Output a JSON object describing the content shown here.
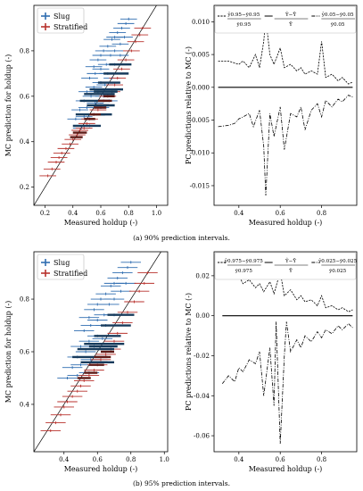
{
  "captions": {
    "a": "(a) 90% prediction intervals.",
    "b": "(b) 95% prediction intervals."
  },
  "colors": {
    "slug": "#2f6db0",
    "stratified": "#b8322d",
    "slug_bar": "#173b5c",
    "stratified_bar": "#5e1a16",
    "axis": "#000000"
  },
  "chart_data": [
    {
      "id": "a-left",
      "type": "scatter",
      "xlabel": "Measured holdup (-)",
      "ylabel": "MC prediction for holdup (-)",
      "xlim": [
        0.12,
        1.08
      ],
      "ylim": [
        0.12,
        1.0
      ],
      "xticks": [
        "0.2",
        "0.4",
        "0.6",
        "0.8",
        "1.0"
      ],
      "yticks": [
        "0.2",
        "0.4",
        "0.6",
        "0.8"
      ],
      "grid": false,
      "legend": "top-left",
      "diagonal": true,
      "series": [
        {
          "name": "Slug",
          "points": [
            [
              0.55,
              0.73
            ],
            [
              0.58,
              0.76
            ],
            [
              0.6,
              0.78
            ],
            [
              0.62,
              0.8
            ],
            [
              0.65,
              0.82
            ],
            [
              0.68,
              0.85
            ],
            [
              0.7,
              0.86
            ],
            [
              0.72,
              0.88
            ],
            [
              0.75,
              0.9
            ],
            [
              0.78,
              0.92
            ],
            [
              0.8,
              0.94
            ],
            [
              0.52,
              0.68
            ],
            [
              0.56,
              0.7
            ],
            [
              0.6,
              0.72
            ],
            [
              0.64,
              0.74
            ],
            [
              0.67,
              0.78
            ],
            [
              0.7,
              0.8
            ],
            [
              0.74,
              0.83
            ],
            [
              0.77,
              0.86
            ],
            [
              0.5,
              0.62
            ],
            [
              0.55,
              0.64
            ],
            [
              0.6,
              0.66
            ],
            [
              0.65,
              0.7
            ],
            [
              0.7,
              0.74
            ],
            [
              0.74,
              0.78
            ],
            [
              0.48,
              0.58
            ],
            [
              0.53,
              0.6
            ],
            [
              0.58,
              0.62
            ],
            [
              0.63,
              0.65
            ],
            [
              0.68,
              0.68
            ],
            [
              0.45,
              0.54
            ],
            [
              0.5,
              0.55
            ],
            [
              0.56,
              0.57
            ],
            [
              0.62,
              0.6
            ],
            [
              0.42,
              0.5
            ],
            [
              0.48,
              0.51
            ],
            [
              0.55,
              0.52
            ],
            [
              0.6,
              0.55
            ],
            [
              0.66,
              0.58
            ],
            [
              0.46,
              0.46
            ],
            [
              0.52,
              0.47
            ]
          ]
        },
        {
          "name": "Stratified",
          "points": [
            [
              0.22,
              0.25
            ],
            [
              0.25,
              0.28
            ],
            [
              0.28,
              0.31
            ],
            [
              0.3,
              0.33
            ],
            [
              0.32,
              0.35
            ],
            [
              0.35,
              0.37
            ],
            [
              0.38,
              0.39
            ],
            [
              0.4,
              0.41
            ],
            [
              0.43,
              0.43
            ],
            [
              0.45,
              0.45
            ],
            [
              0.48,
              0.46
            ],
            [
              0.5,
              0.48
            ],
            [
              0.52,
              0.5
            ],
            [
              0.55,
              0.52
            ],
            [
              0.58,
              0.54
            ],
            [
              0.6,
              0.56
            ],
            [
              0.62,
              0.58
            ],
            [
              0.65,
              0.6
            ],
            [
              0.68,
              0.62
            ],
            [
              0.7,
              0.65
            ],
            [
              0.72,
              0.68
            ],
            [
              0.75,
              0.72
            ],
            [
              0.78,
              0.76
            ],
            [
              0.82,
              0.8
            ],
            [
              0.85,
              0.84
            ],
            [
              0.88,
              0.87
            ],
            [
              0.9,
              0.9
            ]
          ]
        }
      ],
      "bars": [
        [
          0.52,
          0.63,
          0.76
        ],
        [
          0.48,
          0.61,
          0.7
        ],
        [
          0.45,
          0.58,
          0.66
        ],
        [
          0.42,
          0.52,
          0.63
        ],
        [
          0.4,
          0.47,
          0.6
        ],
        [
          0.5,
          0.56,
          0.66
        ],
        [
          0.55,
          0.62,
          0.72
        ],
        [
          0.58,
          0.66,
          0.74
        ],
        [
          0.62,
          0.7,
          0.8
        ],
        [
          0.66,
          0.74,
          0.82
        ],
        [
          0.56,
          0.56,
          0.7
        ],
        [
          0.6,
          0.52,
          0.68
        ]
      ],
      "strat_bars": [
        [
          0.58,
          0.58,
          0.68
        ],
        [
          0.62,
          0.6,
          0.7
        ],
        [
          0.55,
          0.55,
          0.64
        ],
        [
          0.52,
          0.52,
          0.6
        ],
        [
          0.48,
          0.5,
          0.56
        ],
        [
          0.4,
          0.44,
          0.5
        ],
        [
          0.38,
          0.42,
          0.47
        ]
      ]
    },
    {
      "id": "a-right",
      "type": "line",
      "xlabel": "Measured holdup (-)",
      "ylabel": "PC predictions relative to MC (-)",
      "xlim": [
        0.28,
        0.97
      ],
      "ylim": [
        -0.018,
        0.0125
      ],
      "xticks": [
        "0.4",
        "0.6",
        "0.8"
      ],
      "yticks": [
        "0.010",
        "0.005",
        "0.000",
        "-0.005",
        "-0.010",
        "-0.015"
      ],
      "grid": false,
      "legend": "top",
      "legend_entries": [
        "ŷ0.95−ȳ0.95 / ȳ0.95",
        "Ŷ−Ȳ / Ȳ",
        "ŷ0.05−ȳ0.05 / ȳ0.05"
      ],
      "series": [
        {
          "name": "upper",
          "style": "dashed",
          "x": [
            0.3,
            0.35,
            0.4,
            0.42,
            0.45,
            0.48,
            0.5,
            0.52,
            0.53,
            0.55,
            0.57,
            0.6,
            0.62,
            0.65,
            0.68,
            0.7,
            0.72,
            0.75,
            0.78,
            0.8,
            0.82,
            0.85,
            0.88,
            0.9,
            0.93,
            0.95
          ],
          "y": [
            0.004,
            0.004,
            0.0035,
            0.004,
            0.003,
            0.005,
            0.003,
            0.007,
            0.0105,
            0.005,
            0.0035,
            0.006,
            0.003,
            0.0035,
            0.0025,
            0.003,
            0.002,
            0.0025,
            0.002,
            0.007,
            0.0015,
            0.002,
            0.001,
            0.0015,
            0.0005,
            0.0008
          ]
        },
        {
          "name": "mean",
          "style": "solid",
          "x": [
            0.3,
            0.95
          ],
          "y": [
            0,
            0
          ]
        },
        {
          "name": "lower",
          "style": "dashdot",
          "x": [
            0.3,
            0.35,
            0.38,
            0.4,
            0.42,
            0.45,
            0.47,
            0.5,
            0.52,
            0.53,
            0.55,
            0.57,
            0.6,
            0.62,
            0.65,
            0.68,
            0.7,
            0.72,
            0.75,
            0.78,
            0.8,
            0.82,
            0.85,
            0.88,
            0.9,
            0.93,
            0.95
          ],
          "y": [
            -0.006,
            -0.0058,
            -0.0055,
            -0.0048,
            -0.0045,
            -0.004,
            -0.006,
            -0.0035,
            -0.009,
            -0.0165,
            -0.004,
            -0.0075,
            -0.003,
            -0.0095,
            -0.004,
            -0.0045,
            -0.003,
            -0.0065,
            -0.0035,
            -0.0025,
            -0.0045,
            -0.002,
            -0.003,
            -0.0018,
            -0.0022,
            -0.0012,
            -0.0015
          ]
        }
      ]
    },
    {
      "id": "b-left",
      "type": "scatter",
      "xlabel": "Measured holdup (-)",
      "ylabel": "MC prediction for holdup (-)",
      "xlim": [
        0.22,
        1.02
      ],
      "ylim": [
        0.22,
        0.98
      ],
      "xticks": [
        "0.4",
        "0.6",
        "0.8",
        "1.0"
      ],
      "yticks": [
        "0.4",
        "0.6",
        "0.8"
      ],
      "grid": false,
      "legend": "top-left",
      "diagonal": true,
      "series": [
        {
          "name": "Slug",
          "points": [
            [
              0.55,
              0.73
            ],
            [
              0.58,
              0.76
            ],
            [
              0.6,
              0.78
            ],
            [
              0.62,
              0.8
            ],
            [
              0.65,
              0.82
            ],
            [
              0.68,
              0.85
            ],
            [
              0.7,
              0.86
            ],
            [
              0.72,
              0.88
            ],
            [
              0.75,
              0.9
            ],
            [
              0.78,
              0.92
            ],
            [
              0.8,
              0.94
            ],
            [
              0.52,
              0.68
            ],
            [
              0.56,
              0.7
            ],
            [
              0.6,
              0.72
            ],
            [
              0.64,
              0.74
            ],
            [
              0.67,
              0.78
            ],
            [
              0.7,
              0.8
            ],
            [
              0.74,
              0.83
            ],
            [
              0.77,
              0.86
            ],
            [
              0.5,
              0.62
            ],
            [
              0.55,
              0.64
            ],
            [
              0.6,
              0.66
            ],
            [
              0.65,
              0.7
            ],
            [
              0.7,
              0.74
            ],
            [
              0.48,
              0.58
            ],
            [
              0.53,
              0.6
            ],
            [
              0.58,
              0.62
            ],
            [
              0.63,
              0.65
            ],
            [
              0.45,
              0.54
            ],
            [
              0.5,
              0.55
            ],
            [
              0.56,
              0.57
            ],
            [
              0.42,
              0.5
            ],
            [
              0.48,
              0.51
            ],
            [
              0.55,
              0.52
            ]
          ]
        },
        {
          "name": "Stratified",
          "points": [
            [
              0.32,
              0.3
            ],
            [
              0.35,
              0.33
            ],
            [
              0.38,
              0.36
            ],
            [
              0.4,
              0.39
            ],
            [
              0.42,
              0.41
            ],
            [
              0.45,
              0.43
            ],
            [
              0.48,
              0.45
            ],
            [
              0.5,
              0.47
            ],
            [
              0.52,
              0.49
            ],
            [
              0.55,
              0.51
            ],
            [
              0.58,
              0.53
            ],
            [
              0.6,
              0.55
            ],
            [
              0.62,
              0.57
            ],
            [
              0.65,
              0.59
            ],
            [
              0.68,
              0.61
            ],
            [
              0.7,
              0.64
            ],
            [
              0.72,
              0.67
            ],
            [
              0.75,
              0.71
            ],
            [
              0.78,
              0.75
            ],
            [
              0.82,
              0.79
            ],
            [
              0.85,
              0.83
            ],
            [
              0.88,
              0.86
            ],
            [
              0.9,
              0.9
            ]
          ]
        }
      ],
      "bars": [
        [
          0.52,
          0.63,
          0.76
        ],
        [
          0.48,
          0.61,
          0.7
        ],
        [
          0.45,
          0.58,
          0.66
        ],
        [
          0.5,
          0.56,
          0.66
        ],
        [
          0.55,
          0.62,
          0.72
        ],
        [
          0.58,
          0.66,
          0.74
        ],
        [
          0.62,
          0.7,
          0.8
        ],
        [
          0.66,
          0.74,
          0.82
        ],
        [
          0.56,
          0.56,
          0.7
        ]
      ],
      "strat_bars": [
        [
          0.58,
          0.58,
          0.68
        ],
        [
          0.62,
          0.6,
          0.7
        ],
        [
          0.55,
          0.55,
          0.64
        ],
        [
          0.52,
          0.52,
          0.6
        ],
        [
          0.48,
          0.5,
          0.56
        ]
      ]
    },
    {
      "id": "b-right",
      "type": "line",
      "xlabel": "Measured holdup (-)",
      "ylabel": "PC predictions relative to MC (-)",
      "xlim": [
        0.28,
        0.97
      ],
      "ylim": [
        -0.068,
        0.032
      ],
      "xticks": [
        "0.4",
        "0.6",
        "0.8"
      ],
      "yticks": [
        "0.02",
        "0.00",
        "-0.02",
        "-0.04",
        "-0.06"
      ],
      "grid": false,
      "legend": "top",
      "legend_entries": [
        "ŷ0.975−ȳ0.975 / ȳ0.975",
        "Ŷ−Ȳ / Ȳ",
        "ŷ0.025−ȳ0.025 / ȳ0.025"
      ],
      "series": [
        {
          "name": "upper",
          "style": "dashed",
          "x": [
            0.32,
            0.35,
            0.38,
            0.4,
            0.42,
            0.45,
            0.48,
            0.5,
            0.52,
            0.55,
            0.57,
            0.6,
            0.62,
            0.65,
            0.68,
            0.7,
            0.72,
            0.75,
            0.78,
            0.8,
            0.82,
            0.85,
            0.88,
            0.9,
            0.93,
            0.95
          ],
          "y": [
            0.023,
            0.022,
            0.019,
            0.02,
            0.016,
            0.018,
            0.014,
            0.016,
            0.012,
            0.017,
            0.011,
            0.022,
            0.01,
            0.013,
            0.008,
            0.01,
            0.007,
            0.008,
            0.005,
            0.01,
            0.004,
            0.005,
            0.003,
            0.004,
            0.002,
            0.003
          ]
        },
        {
          "name": "mean",
          "style": "solid",
          "x": [
            0.32,
            0.95
          ],
          "y": [
            0,
            0
          ]
        },
        {
          "name": "lower",
          "style": "dashdot",
          "x": [
            0.32,
            0.35,
            0.38,
            0.4,
            0.42,
            0.45,
            0.48,
            0.5,
            0.52,
            0.55,
            0.57,
            0.58,
            0.6,
            0.62,
            0.63,
            0.65,
            0.68,
            0.7,
            0.72,
            0.75,
            0.78,
            0.8,
            0.82,
            0.85,
            0.88,
            0.9,
            0.93,
            0.95
          ],
          "y": [
            -0.034,
            -0.03,
            -0.033,
            -0.026,
            -0.028,
            -0.022,
            -0.024,
            -0.018,
            -0.04,
            -0.016,
            -0.045,
            -0.003,
            -0.064,
            -0.02,
            -0.003,
            -0.018,
            -0.012,
            -0.016,
            -0.01,
            -0.013,
            -0.008,
            -0.011,
            -0.007,
            -0.009,
            -0.005,
            -0.007,
            -0.004,
            -0.006
          ]
        }
      ]
    }
  ]
}
